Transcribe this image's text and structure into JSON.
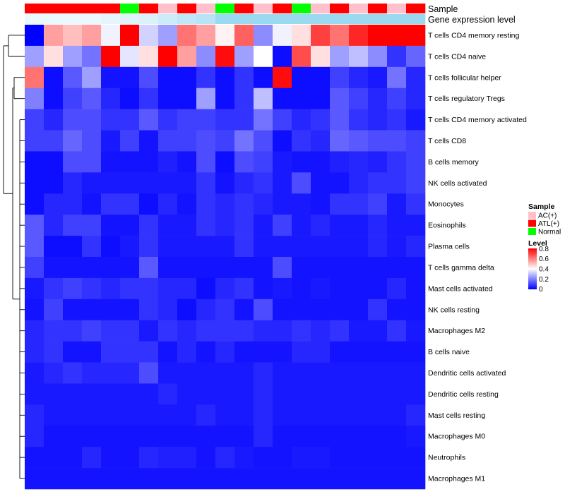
{
  "chart_data": {
    "type": "heatmap",
    "annotation_tracks": [
      {
        "key": "sample",
        "label": "Sample"
      },
      {
        "key": "level",
        "label": "Gene expression level"
      }
    ],
    "column_sample": [
      "ATL(+)",
      "ATL(+)",
      "ATL(+)",
      "ATL(+)",
      "ATL(+)",
      "Normal",
      "ATL(+)",
      "AC(+)",
      "ATL(+)",
      "AC(+)",
      "Normal",
      "ATL(+)",
      "AC(+)",
      "ATL(+)",
      "Normal",
      "AC(+)",
      "ATL(+)",
      "AC(+)",
      "ATL(+)",
      "AC(+)",
      "ATL(+)"
    ],
    "column_level_color": [
      "#ebf8fd",
      "#ebf8fd",
      "#ebf8fd",
      "#ebf8fd",
      "#e4f5fc",
      "#e0f3fb",
      "#dcf2fb",
      "#cdecf9",
      "#bfe7f7",
      "#b8e4f6",
      "#9bd9f1",
      "#9bd9f1",
      "#9bd9f1",
      "#9bd9f1",
      "#9bd9f1",
      "#9bd9f1",
      "#9bd9f1",
      "#9bd9f1",
      "#9bd9f1",
      "#9bd9f1",
      "#9bd9f1"
    ],
    "rows": [
      {
        "label": "T cells CD4 memory resting",
        "values": [
          0.0,
          0.55,
          0.5,
          0.55,
          0.38,
          0.8,
          0.33,
          0.25,
          0.62,
          0.55,
          0.42,
          0.65,
          0.22,
          0.38,
          0.45,
          0.7,
          0.62,
          0.74,
          0.8,
          0.8,
          0.8
        ]
      },
      {
        "label": "T cells CD4 naive",
        "values": [
          0.25,
          0.45,
          0.25,
          0.18,
          0.8,
          0.36,
          0.45,
          0.8,
          0.55,
          0.22,
          0.78,
          0.25,
          0.4,
          0.02,
          0.68,
          0.45,
          0.25,
          0.3,
          0.22,
          0.08,
          0.16
        ]
      },
      {
        "label": "T cells follicular helper",
        "values": [
          0.62,
          0.02,
          0.14,
          0.25,
          0.03,
          0.03,
          0.12,
          0.02,
          0.02,
          0.08,
          0.02,
          0.08,
          0.02,
          0.78,
          0.02,
          0.02,
          0.1,
          0.06,
          0.04,
          0.18,
          0.06
        ]
      },
      {
        "label": "T cells regulatory  Tregs",
        "values": [
          0.2,
          0.02,
          0.1,
          0.14,
          0.06,
          0.02,
          0.08,
          0.02,
          0.02,
          0.25,
          0.02,
          0.08,
          0.3,
          0.02,
          0.02,
          0.02,
          0.14,
          0.1,
          0.06,
          0.1,
          0.06
        ]
      },
      {
        "label": "T cells CD4 memory activated",
        "values": [
          0.1,
          0.06,
          0.12,
          0.12,
          0.08,
          0.08,
          0.14,
          0.08,
          0.1,
          0.1,
          0.08,
          0.08,
          0.18,
          0.1,
          0.06,
          0.08,
          0.14,
          0.08,
          0.06,
          0.08,
          0.04
        ]
      },
      {
        "label": "T cells CD8",
        "values": [
          0.1,
          0.1,
          0.16,
          0.12,
          0.04,
          0.1,
          0.03,
          0.1,
          0.1,
          0.12,
          0.1,
          0.18,
          0.12,
          0.02,
          0.08,
          0.06,
          0.16,
          0.14,
          0.12,
          0.12,
          0.1
        ]
      },
      {
        "label": "B cells memory",
        "values": [
          0.02,
          0.02,
          0.12,
          0.12,
          0.03,
          0.03,
          0.03,
          0.05,
          0.03,
          0.12,
          0.02,
          0.12,
          0.1,
          0.04,
          0.03,
          0.03,
          0.05,
          0.06,
          0.05,
          0.08,
          0.1
        ]
      },
      {
        "label": "NK cells activated",
        "values": [
          0.02,
          0.02,
          0.06,
          0.04,
          0.04,
          0.04,
          0.04,
          0.04,
          0.04,
          0.08,
          0.03,
          0.06,
          0.08,
          0.04,
          0.12,
          0.03,
          0.03,
          0.06,
          0.08,
          0.08,
          0.1
        ]
      },
      {
        "label": "Monocytes",
        "values": [
          0.02,
          0.06,
          0.06,
          0.03,
          0.08,
          0.08,
          0.02,
          0.06,
          0.03,
          0.08,
          0.06,
          0.08,
          0.06,
          0.04,
          0.04,
          0.03,
          0.08,
          0.08,
          0.1,
          0.04,
          0.08
        ]
      },
      {
        "label": "Eosinophils",
        "values": [
          0.14,
          0.06,
          0.1,
          0.1,
          0.03,
          0.03,
          0.08,
          0.04,
          0.04,
          0.08,
          0.06,
          0.08,
          0.04,
          0.1,
          0.04,
          0.06,
          0.04,
          0.04,
          0.06,
          0.04,
          0.04
        ]
      },
      {
        "label": "Plasma cells",
        "values": [
          0.14,
          0.02,
          0.02,
          0.08,
          0.02,
          0.04,
          0.08,
          0.04,
          0.04,
          0.04,
          0.04,
          0.08,
          0.04,
          0.04,
          0.04,
          0.04,
          0.04,
          0.04,
          0.06,
          0.04,
          0.06
        ]
      },
      {
        "label": "T cells gamma delta",
        "values": [
          0.1,
          0.03,
          0.03,
          0.03,
          0.03,
          0.03,
          0.14,
          0.03,
          0.03,
          0.03,
          0.03,
          0.03,
          0.03,
          0.12,
          0.03,
          0.03,
          0.03,
          0.03,
          0.03,
          0.03,
          0.03
        ]
      },
      {
        "label": "Mast cells activated",
        "values": [
          0.04,
          0.08,
          0.1,
          0.08,
          0.06,
          0.08,
          0.08,
          0.06,
          0.06,
          0.02,
          0.06,
          0.08,
          0.03,
          0.04,
          0.03,
          0.04,
          0.03,
          0.03,
          0.03,
          0.06,
          0.03
        ]
      },
      {
        "label": "NK cells resting",
        "values": [
          0.03,
          0.1,
          0.03,
          0.03,
          0.03,
          0.03,
          0.08,
          0.06,
          0.02,
          0.06,
          0.08,
          0.03,
          0.12,
          0.03,
          0.03,
          0.03,
          0.03,
          0.03,
          0.08,
          0.03,
          0.03
        ]
      },
      {
        "label": "Macrophages M2",
        "values": [
          0.06,
          0.08,
          0.08,
          0.1,
          0.08,
          0.08,
          0.04,
          0.08,
          0.06,
          0.08,
          0.08,
          0.08,
          0.06,
          0.06,
          0.08,
          0.06,
          0.08,
          0.04,
          0.04,
          0.08,
          0.04
        ]
      },
      {
        "label": "B cells naive",
        "values": [
          0.06,
          0.08,
          0.03,
          0.03,
          0.08,
          0.08,
          0.08,
          0.03,
          0.06,
          0.03,
          0.06,
          0.03,
          0.03,
          0.03,
          0.06,
          0.06,
          0.03,
          0.03,
          0.03,
          0.03,
          0.03
        ]
      },
      {
        "label": "Dendritic cells activated",
        "values": [
          0.04,
          0.06,
          0.08,
          0.06,
          0.06,
          0.06,
          0.12,
          0.04,
          0.04,
          0.04,
          0.04,
          0.04,
          0.06,
          0.04,
          0.04,
          0.04,
          0.04,
          0.04,
          0.04,
          0.04,
          0.04
        ]
      },
      {
        "label": "Dendritic cells resting",
        "values": [
          0.04,
          0.04,
          0.04,
          0.04,
          0.04,
          0.04,
          0.04,
          0.06,
          0.04,
          0.04,
          0.04,
          0.04,
          0.06,
          0.04,
          0.04,
          0.04,
          0.04,
          0.04,
          0.04,
          0.04,
          0.04
        ]
      },
      {
        "label": "Mast cells resting",
        "values": [
          0.06,
          0.04,
          0.04,
          0.04,
          0.04,
          0.04,
          0.04,
          0.04,
          0.04,
          0.06,
          0.04,
          0.04,
          0.06,
          0.04,
          0.04,
          0.04,
          0.04,
          0.04,
          0.04,
          0.04,
          0.06
        ]
      },
      {
        "label": "Macrophages M0",
        "values": [
          0.06,
          0.03,
          0.03,
          0.03,
          0.03,
          0.03,
          0.03,
          0.03,
          0.03,
          0.03,
          0.03,
          0.03,
          0.06,
          0.03,
          0.03,
          0.03,
          0.03,
          0.03,
          0.03,
          0.03,
          0.04
        ]
      },
      {
        "label": "Neutrophils",
        "values": [
          0.03,
          0.03,
          0.03,
          0.06,
          0.03,
          0.03,
          0.06,
          0.05,
          0.05,
          0.03,
          0.06,
          0.04,
          0.03,
          0.03,
          0.04,
          0.04,
          0.03,
          0.03,
          0.03,
          0.03,
          0.03
        ]
      },
      {
        "label": "Macrophages M1",
        "values": [
          0.03,
          0.03,
          0.03,
          0.03,
          0.03,
          0.03,
          0.03,
          0.03,
          0.03,
          0.03,
          0.03,
          0.03,
          0.03,
          0.03,
          0.03,
          0.03,
          0.03,
          0.03,
          0.03,
          0.03,
          0.03
        ]
      }
    ],
    "color_scale": {
      "low": "#0000ff",
      "mid": "#ffffff",
      "high": "#ff0000",
      "range": [
        0,
        0.8
      ]
    },
    "legend_sample": {
      "title": "Sample",
      "entries": [
        {
          "label": "AC(+)",
          "color": "#ffc0cb"
        },
        {
          "label": "ATL(+)",
          "color": "#ff0000"
        },
        {
          "label": "Normal",
          "color": "#00ff00"
        }
      ]
    },
    "legend_level": {
      "title": "Level",
      "ticks": [
        {
          "label": "0.8",
          "value": 0.8
        },
        {
          "label": "0.6",
          "value": 0.6
        },
        {
          "label": "0.4",
          "value": 0.4
        },
        {
          "label": "0.2",
          "value": 0.2
        },
        {
          "label": "0",
          "value": 0
        }
      ]
    }
  }
}
